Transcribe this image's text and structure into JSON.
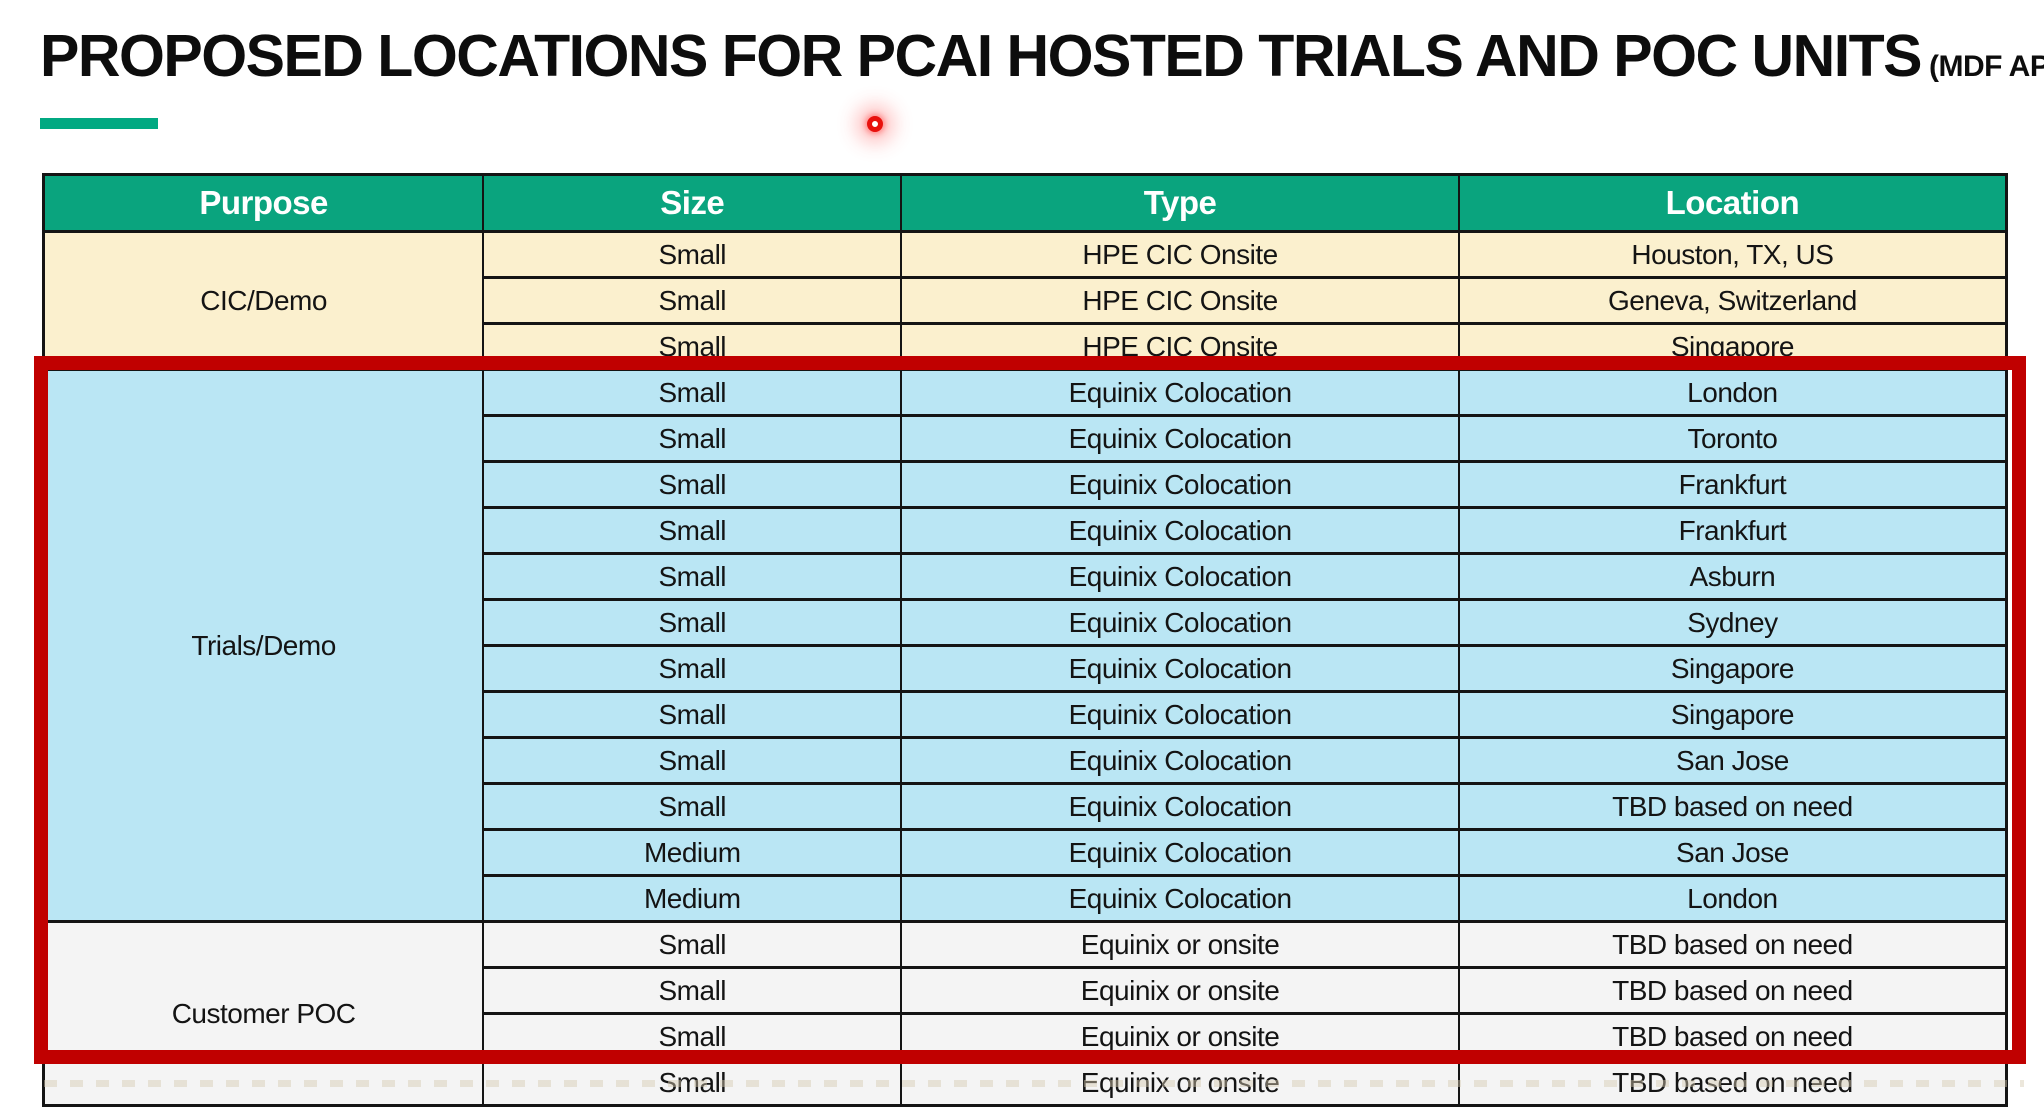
{
  "page": {
    "title": "PROPOSED LOCATIONS FOR PCAI HOSTED TRIALS AND POC UNITS",
    "title_suffix": "(MDF APPROVED)"
  },
  "colors": {
    "accent_green": "#01A982",
    "header_bg": "#0AA47E",
    "header_text": "#FFFFFF",
    "highlight_red": "#C00000",
    "laser_red": "#E8100C",
    "cic_bg": "#FBF0CE",
    "trials_bg": "#BAE6F4",
    "poc_bg": "#F4F4F4"
  },
  "table": {
    "headers": [
      "Purpose",
      "Size",
      "Type",
      "Location"
    ],
    "sections": [
      {
        "purpose": "CIC/Demo",
        "bg": "#FBF0CE",
        "rows": [
          [
            "Small",
            "HPE CIC Onsite",
            "Houston, TX, US"
          ],
          [
            "Small",
            "HPE CIC Onsite",
            "Geneva, Switzerland"
          ],
          [
            "Small",
            "HPE CIC Onsite",
            "Singapore"
          ]
        ]
      },
      {
        "purpose": "Trials/Demo",
        "bg": "#BAE6F4",
        "rows": [
          [
            "Small",
            "Equinix Colocation",
            "London"
          ],
          [
            "Small",
            "Equinix Colocation",
            "Toronto"
          ],
          [
            "Small",
            "Equinix Colocation",
            "Frankfurt"
          ],
          [
            "Small",
            "Equinix Colocation",
            "Frankfurt"
          ],
          [
            "Small",
            "Equinix Colocation",
            "Asburn"
          ],
          [
            "Small",
            "Equinix Colocation",
            "Sydney"
          ],
          [
            "Small",
            "Equinix Colocation",
            "Singapore"
          ],
          [
            "Small",
            "Equinix Colocation",
            "Singapore"
          ],
          [
            "Small",
            "Equinix Colocation",
            "San Jose"
          ],
          [
            "Small",
            "Equinix Colocation",
            "TBD based on need"
          ],
          [
            "Medium",
            "Equinix Colocation",
            "San Jose"
          ],
          [
            "Medium",
            "Equinix Colocation",
            "London"
          ]
        ]
      },
      {
        "purpose": "Customer POC",
        "bg": "#F4F4F4",
        "rows": [
          [
            "Small",
            "Equinix or onsite",
            "TBD based on need"
          ],
          [
            "Small",
            "Equinix or onsite",
            "TBD based on need"
          ],
          [
            "Small",
            "Equinix or onsite",
            "TBD based on need"
          ],
          [
            "Small",
            "Equinix or onsite",
            "TBD based on need"
          ]
        ]
      }
    ]
  },
  "annotations": {
    "highlight_box": "red-rectangle-around-trials-and-poc-sections",
    "laser_pointer": "red-laser-pointer-dot"
  }
}
